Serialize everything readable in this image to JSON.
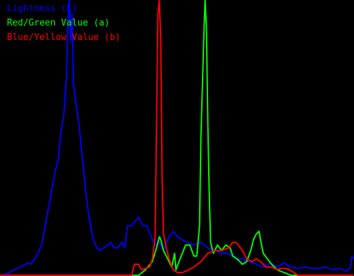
{
  "chart_data": {
    "type": "line",
    "title": "",
    "xlabel": "",
    "ylabel": "",
    "grid": false,
    "legend_position": "top-left",
    "background": "#000000",
    "xlim": [
      0,
      255
    ],
    "ylim": [
      0,
      1
    ],
    "series": [
      {
        "name": "Lightness (L)",
        "color": "#0000ff",
        "points": [
          [
            0,
            0.0
          ],
          [
            5,
            0.005
          ],
          [
            10,
            0.02
          ],
          [
            15,
            0.03
          ],
          [
            20,
            0.045
          ],
          [
            22,
            0.04
          ],
          [
            25,
            0.06
          ],
          [
            28,
            0.085
          ],
          [
            30,
            0.11
          ],
          [
            32,
            0.16
          ],
          [
            34,
            0.22
          ],
          [
            36,
            0.27
          ],
          [
            38,
            0.33
          ],
          [
            40,
            0.38
          ],
          [
            42,
            0.42
          ],
          [
            44,
            0.52
          ],
          [
            46,
            0.58
          ],
          [
            48,
            0.72
          ],
          [
            49,
            0.92
          ],
          [
            50,
            1.0
          ],
          [
            51,
            0.85
          ],
          [
            52,
            0.95
          ],
          [
            53,
            0.7
          ],
          [
            55,
            0.62
          ],
          [
            57,
            0.55
          ],
          [
            60,
            0.4
          ],
          [
            62,
            0.3
          ],
          [
            64,
            0.22
          ],
          [
            66,
            0.16
          ],
          [
            68,
            0.12
          ],
          [
            70,
            0.1
          ],
          [
            72,
            0.09
          ],
          [
            75,
            0.1
          ],
          [
            78,
            0.11
          ],
          [
            80,
            0.12
          ],
          [
            82,
            0.1
          ],
          [
            85,
            0.1
          ],
          [
            88,
            0.12
          ],
          [
            90,
            0.1
          ],
          [
            92,
            0.18
          ],
          [
            95,
            0.18
          ],
          [
            98,
            0.2
          ],
          [
            100,
            0.21
          ],
          [
            103,
            0.18
          ],
          [
            106,
            0.18
          ],
          [
            109,
            0.14
          ],
          [
            112,
            0.11
          ],
          [
            115,
            0.12
          ],
          [
            118,
            0.09
          ],
          [
            122,
            0.14
          ],
          [
            125,
            0.16
          ],
          [
            128,
            0.14
          ],
          [
            131,
            0.13
          ],
          [
            135,
            0.12
          ],
          [
            140,
            0.11
          ],
          [
            145,
            0.12
          ],
          [
            150,
            0.1
          ],
          [
            155,
            0.09
          ],
          [
            160,
            0.08
          ],
          [
            165,
            0.08
          ],
          [
            170,
            0.06
          ],
          [
            175,
            0.06
          ],
          [
            180,
            0.05
          ],
          [
            185,
            0.04
          ],
          [
            190,
            0.03
          ],
          [
            195,
            0.045
          ],
          [
            200,
            0.03
          ],
          [
            205,
            0.045
          ],
          [
            210,
            0.03
          ],
          [
            215,
            0.025
          ],
          [
            220,
            0.03
          ],
          [
            225,
            0.025
          ],
          [
            230,
            0.025
          ],
          [
            235,
            0.03
          ],
          [
            240,
            0.02
          ],
          [
            245,
            0.025
          ],
          [
            250,
            0.015
          ],
          [
            253,
            0.03
          ],
          [
            254,
            0.07
          ],
          [
            255,
            0.06
          ]
        ]
      },
      {
        "name": "Red/Green Value (a)",
        "color": "#00ff00",
        "points": [
          [
            0,
            0.0
          ],
          [
            100,
            0.0
          ],
          [
            105,
            0.02
          ],
          [
            110,
            0.05
          ],
          [
            113,
            0.1
          ],
          [
            115,
            0.14
          ],
          [
            116,
            0.13
          ],
          [
            118,
            0.09
          ],
          [
            121,
            0.06
          ],
          [
            124,
            0.03
          ],
          [
            126,
            0.08
          ],
          [
            127,
            0.02
          ],
          [
            130,
            0.06
          ],
          [
            134,
            0.11
          ],
          [
            137,
            0.11
          ],
          [
            140,
            0.07
          ],
          [
            142,
            0.07
          ],
          [
            144,
            0.18
          ],
          [
            145,
            0.5
          ],
          [
            147,
            0.85
          ],
          [
            148,
            1.0
          ],
          [
            149,
            0.9
          ],
          [
            150,
            0.55
          ],
          [
            151,
            0.3
          ],
          [
            152,
            0.12
          ],
          [
            154,
            0.08
          ],
          [
            157,
            0.11
          ],
          [
            160,
            0.09
          ],
          [
            163,
            0.11
          ],
          [
            166,
            0.1
          ],
          [
            168,
            0.07
          ],
          [
            171,
            0.06
          ],
          [
            175,
            0.04
          ],
          [
            178,
            0.05
          ],
          [
            181,
            0.09
          ],
          [
            183,
            0.13
          ],
          [
            185,
            0.15
          ],
          [
            187,
            0.16
          ],
          [
            188,
            0.13
          ],
          [
            190,
            0.08
          ],
          [
            193,
            0.06
          ],
          [
            196,
            0.04
          ],
          [
            200,
            0.02
          ],
          [
            205,
            0.01
          ],
          [
            210,
            0.0
          ],
          [
            255,
            0.0
          ]
        ]
      },
      {
        "name": "Blue/Yellow Value (b)",
        "color": "#ff0000",
        "points": [
          [
            0,
            0.0
          ],
          [
            95,
            0.0
          ],
          [
            97,
            0.04
          ],
          [
            100,
            0.04
          ],
          [
            102,
            0.02
          ],
          [
            105,
            0.025
          ],
          [
            108,
            0.03
          ],
          [
            110,
            0.06
          ],
          [
            112,
            0.14
          ],
          [
            113,
            0.55
          ],
          [
            114,
            0.95
          ],
          [
            115,
            1.0
          ],
          [
            116,
            0.85
          ],
          [
            117,
            0.35
          ],
          [
            118,
            0.15
          ],
          [
            120,
            0.1
          ],
          [
            122,
            0.06
          ],
          [
            125,
            0.02
          ],
          [
            128,
            0.01
          ],
          [
            132,
            0.01
          ],
          [
            136,
            0.02
          ],
          [
            140,
            0.03
          ],
          [
            145,
            0.05
          ],
          [
            150,
            0.08
          ],
          [
            155,
            0.09
          ],
          [
            160,
            0.09
          ],
          [
            165,
            0.1
          ],
          [
            168,
            0.12
          ],
          [
            170,
            0.12
          ],
          [
            172,
            0.11
          ],
          [
            175,
            0.09
          ],
          [
            178,
            0.06
          ],
          [
            182,
            0.05
          ],
          [
            185,
            0.06
          ],
          [
            188,
            0.05
          ],
          [
            192,
            0.03
          ],
          [
            196,
            0.03
          ],
          [
            200,
            0.02
          ],
          [
            203,
            0.025
          ],
          [
            206,
            0.025
          ],
          [
            209,
            0.02
          ],
          [
            212,
            0.01
          ],
          [
            215,
            0.0
          ],
          [
            255,
            0.0
          ]
        ]
      }
    ]
  }
}
